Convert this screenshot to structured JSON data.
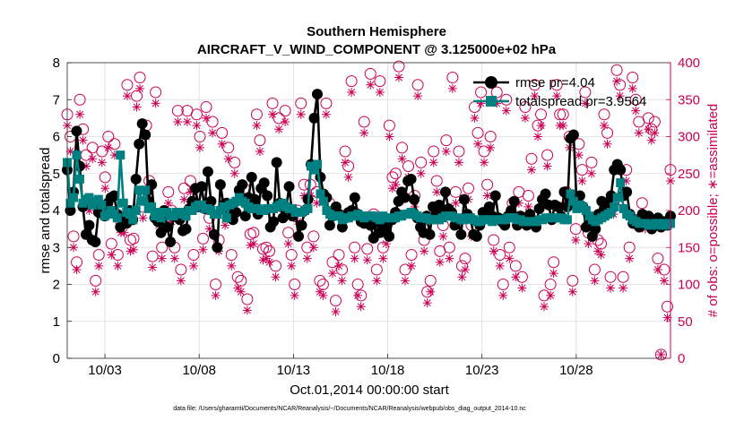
{
  "title_line1": "Southern Hemisphere",
  "title_line2": "AIRCRAFT_V_WIND_COMPONENT @ 3.125000e+02 hPa",
  "xlabel": "Oct.01,2014 00:00:00 start",
  "footer": "data file: /Users/gharamti/Documents/NCAR/Reanalysis/~/Documents/NCAR/Reanalysis/webpub/obs_diag_output_2014-10.nc",
  "colors": {
    "rmse": "#000000",
    "spread": "#008080",
    "obs": "#cc0055",
    "axis": "#262626"
  },
  "chart_data": {
    "type": "line",
    "title": "Southern Hemisphere\nAIRCRAFT_V_WIND_COMPONENT @ 3.125000e+02 hPa",
    "xlabel": "Oct.01,2014 00:00:00 start",
    "ylabel": "rmse and totalspread",
    "y2label": "# of obs: o=possible; ∗=assimilated",
    "xlim": [
      1,
      33
    ],
    "xticks": [
      3,
      8,
      13,
      18,
      23,
      28
    ],
    "xticklabels": [
      "10/03",
      "10/08",
      "10/13",
      "10/18",
      "10/23",
      "10/28"
    ],
    "ylim": [
      0,
      8
    ],
    "yticks": [
      0,
      1,
      2,
      3,
      4,
      5,
      6,
      7,
      8
    ],
    "y2lim": [
      0,
      400
    ],
    "y2ticks": [
      0,
      50,
      100,
      150,
      200,
      250,
      300,
      350,
      400
    ],
    "grid": true,
    "legend_position": "top-right",
    "series": [
      {
        "name": "rmse pr=4.04",
        "marker": "circle",
        "axis": "left",
        "values": [
          5.1,
          4.0,
          4.5,
          6.15,
          5.2,
          4.1,
          3.35,
          3.6,
          3.2,
          3.15,
          3.95,
          4.1,
          3.85,
          4.2,
          4.35,
          4.4,
          3.9,
          3.55,
          3.8,
          3.65,
          4.0,
          3.75,
          4.85,
          5.8,
          6.35,
          6.05,
          4.25,
          4.7,
          3.8,
          3.7,
          3.4,
          4.0,
          3.55,
          3.15,
          3.85,
          3.9,
          3.75,
          3.45,
          3.5,
          4.05,
          4.25,
          4.6,
          4.1,
          4.65,
          4.05,
          5.05,
          4.25,
          3.35,
          3.0,
          4.7,
          4.15,
          4.2,
          4.0,
          3.75,
          3.95,
          4.55,
          4.7,
          3.85,
          4.35,
          4.9,
          4.3,
          3.9,
          4.6,
          4.75,
          4.4,
          3.55,
          3.7,
          5.3,
          4.2,
          3.8,
          4.05,
          4.65,
          3.85,
          3.95,
          3.3,
          3.6,
          4.0,
          4.3,
          5.25,
          6.5,
          7.15,
          4.9,
          4.45,
          4.35,
          3.6,
          3.85,
          4.1,
          3.9,
          3.55,
          3.8,
          3.95,
          4.0,
          4.35,
          3.9,
          3.7,
          3.65,
          3.8,
          3.6,
          3.25,
          3.7,
          3.4,
          3.6,
          3.55,
          3.3,
          3.75,
          3.95,
          4.25,
          4.5,
          4.35,
          4.8,
          4.85,
          4.3,
          3.8,
          3.55,
          3.4,
          3.85,
          3.35,
          4.1,
          3.9,
          4.15,
          4.0,
          4.5,
          4.05,
          3.95,
          3.6,
          3.75,
          3.35,
          4.3,
          3.9,
          3.8,
          3.35,
          3.3,
          3.6,
          3.95,
          3.85,
          4.1,
          3.85,
          4.4,
          3.8,
          3.7,
          3.6,
          3.85,
          4.0,
          4.25,
          3.6,
          3.85,
          3.75,
          3.6,
          3.9,
          3.7,
          3.55,
          4.05,
          4.3,
          4.45,
          4.15,
          3.75,
          4.15,
          4.1,
          3.85,
          4.5,
          4.1,
          5.95,
          6.05,
          4.15,
          4.4,
          4.1,
          3.55,
          3.7,
          3.3,
          3.5,
          3.9,
          4.25,
          4.1,
          4.2,
          4.4,
          5.1,
          5.25,
          5.1,
          4.4,
          4.5,
          3.9,
          3.65,
          3.75,
          3.55,
          3.9,
          3.8,
          3.85,
          3.5,
          3.7,
          3.8,
          3.55,
          3.7,
          3.6,
          3.85
        ]
      },
      {
        "name": "totalspread pr=3.9564",
        "marker": "square",
        "axis": "left",
        "values": [
          5.3,
          4.2,
          4.35,
          5.5,
          4.85,
          4.2,
          4.3,
          4.35,
          4.15,
          4.25,
          4.3,
          4.15,
          3.85,
          3.9,
          4.0,
          3.9,
          3.8,
          5.5,
          4.2,
          3.95,
          3.9,
          3.75,
          4.0,
          4.55,
          4.25,
          4.55,
          4.05,
          4.1,
          3.85,
          3.95,
          3.8,
          3.95,
          3.95,
          3.85,
          3.85,
          3.95,
          3.95,
          3.9,
          3.85,
          4.0,
          4.0,
          4.1,
          4.15,
          4.15,
          4.05,
          4.05,
          4.0,
          3.9,
          3.9,
          4.0,
          4.1,
          3.8,
          4.15,
          4.2,
          4.25,
          4.35,
          4.25,
          4.2,
          4.1,
          4.05,
          4.05,
          4.05,
          4.0,
          4.0,
          4.05,
          4.05,
          4.05,
          4.1,
          4.15,
          4.2,
          4.1,
          4.05,
          4.05,
          3.95,
          3.95,
          3.95,
          4.0,
          4.05,
          5.2,
          5.1,
          5.25,
          4.45,
          4.25,
          4.0,
          3.9,
          3.85,
          3.85,
          3.85,
          3.75,
          3.8,
          3.8,
          3.85,
          3.85,
          3.9,
          3.85,
          3.8,
          3.85,
          3.85,
          3.85,
          3.8,
          3.75,
          3.85,
          3.8,
          3.8,
          3.8,
          3.8,
          3.85,
          3.85,
          3.9,
          3.9,
          3.95,
          3.9,
          3.85,
          3.8,
          3.8,
          3.8,
          3.75,
          3.75,
          3.75,
          3.75,
          3.8,
          3.85,
          3.85,
          3.85,
          3.8,
          3.8,
          3.75,
          3.75,
          3.8,
          3.8,
          3.75,
          3.7,
          3.7,
          3.75,
          3.75,
          3.75,
          3.7,
          3.75,
          3.75,
          3.75,
          3.75,
          3.8,
          3.8,
          3.8,
          3.75,
          3.75,
          3.7,
          3.7,
          3.7,
          3.7,
          3.7,
          3.75,
          3.75,
          3.8,
          3.8,
          3.8,
          3.8,
          3.8,
          3.8,
          3.75,
          3.75,
          4.45,
          4.25,
          4.05,
          4.15,
          4.1,
          4.0,
          3.85,
          3.75,
          3.7,
          3.75,
          3.8,
          3.85,
          3.9,
          3.95,
          4.1,
          4.35,
          4.75,
          4.05,
          3.9,
          3.85,
          3.75,
          3.7,
          3.65,
          3.65,
          3.65,
          3.6,
          3.6,
          3.65,
          3.65,
          3.6,
          3.65,
          3.6,
          3.65
        ]
      },
      {
        "name": "possible",
        "marker": "open-circle",
        "axis": "right",
        "values": [
          330,
          300,
          165,
          130,
          350,
          310,
          275,
          212,
          285,
          105,
          140,
          280,
          245,
          300,
          155,
          290,
          140,
          185,
          185,
          370,
          160,
          162,
          355,
          380,
          205,
          315,
          240,
          138,
          360,
          195,
          150,
          190,
          225,
          200,
          150,
          335,
          120,
          230,
          335,
          240,
          140,
          330,
          300,
          162,
          340,
          190,
          320,
          100,
          160,
          305,
          195,
          285,
          140,
          265,
          110,
          105,
          230,
          80,
          168,
          170,
          330,
          295,
          148,
          150,
          145,
          345,
          125,
          325,
          205,
          335,
          170,
          140,
          100,
          200,
          345,
          235,
          150,
          235,
          165,
          225,
          105,
          100,
          345,
          210,
          130,
          78,
          140,
          120,
          280,
          260,
          375,
          150,
          100,
          85,
          320,
          148,
          385,
          195,
          120,
          375,
          150,
          170,
          315,
          245,
          250,
          395,
          285,
          120,
          260,
          140,
          220,
          370,
          265,
          160,
          90,
          105,
          280,
          240,
          145,
          180,
          295,
          150,
          380,
          225,
          280,
          125,
          135,
          230,
          180,
          340,
          305,
          360,
          280,
          235,
          300,
          160,
          360,
          140,
          100,
          350,
          150,
          210,
          125,
          225,
          110,
          340,
          220,
          270,
          370,
          315,
          330,
          85,
          275,
          100,
          130,
          370,
          330,
          330,
          225,
          300,
          105,
          175,
          290,
          255,
          360,
          170,
          265,
          120,
          160,
          155,
          330,
          305,
          110,
          210,
          390,
          370,
          110,
          255,
          150,
          380,
          350,
          320,
          210,
          190,
          325,
          310,
          320,
          135,
          5,
          120,
          70,
          255
        ]
      },
      {
        "name": "assimilated",
        "marker": "asterisk",
        "axis": "right",
        "values": [
          315,
          280,
          150,
          120,
          330,
          295,
          260,
          200,
          270,
          90,
          125,
          265,
          230,
          285,
          140,
          275,
          125,
          170,
          170,
          355,
          145,
          147,
          340,
          365,
          190,
          300,
          225,
          123,
          345,
          180,
          135,
          175,
          210,
          185,
          135,
          320,
          105,
          215,
          320,
          225,
          125,
          315,
          285,
          147,
          325,
          175,
          305,
          85,
          145,
          290,
          180,
          270,
          125,
          250,
          95,
          90,
          215,
          65,
          153,
          155,
          315,
          280,
          133,
          135,
          130,
          330,
          110,
          310,
          190,
          320,
          155,
          125,
          85,
          185,
          330,
          220,
          135,
          220,
          150,
          210,
          90,
          85,
          330,
          195,
          115,
          63,
          125,
          105,
          265,
          245,
          360,
          135,
          85,
          70,
          305,
          133,
          370,
          180,
          105,
          360,
          135,
          155,
          300,
          230,
          235,
          380,
          270,
          105,
          245,
          125,
          205,
          355,
          250,
          145,
          75,
          90,
          265,
          225,
          130,
          165,
          280,
          135,
          365,
          210,
          265,
          110,
          120,
          215,
          165,
          325,
          290,
          345,
          265,
          220,
          285,
          145,
          345,
          125,
          85,
          335,
          135,
          195,
          110,
          210,
          95,
          325,
          205,
          255,
          355,
          300,
          315,
          70,
          260,
          85,
          115,
          355,
          315,
          315,
          210,
          285,
          90,
          160,
          275,
          240,
          345,
          155,
          250,
          105,
          145,
          140,
          315,
          290,
          95,
          195,
          375,
          355,
          95,
          240,
          135,
          365,
          335,
          305,
          195,
          175,
          310,
          295,
          305,
          120,
          5,
          105,
          55,
          240
        ]
      }
    ]
  }
}
